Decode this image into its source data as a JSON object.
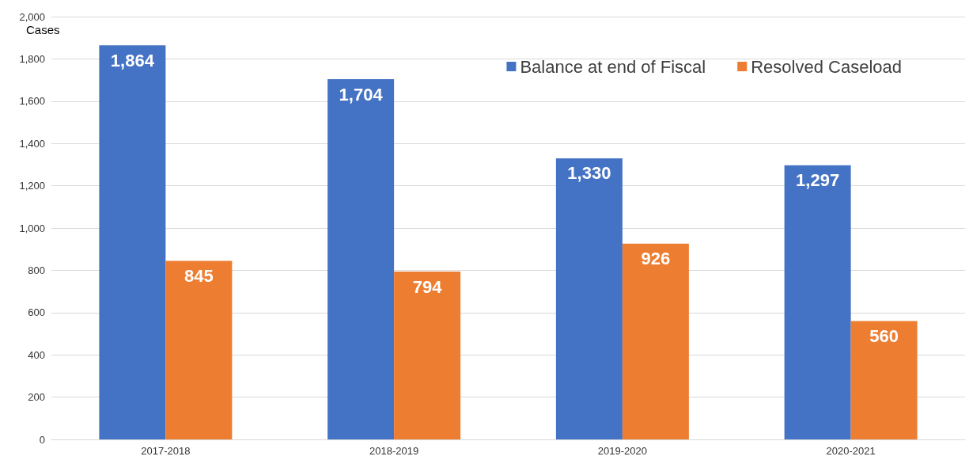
{
  "chart_data": {
    "type": "bar",
    "ylabel": "Cases",
    "categories": [
      "2017-2018",
      "2018-2019",
      "2019-2020",
      "2020-2021"
    ],
    "series": [
      {
        "name": "Balance at end of Fiscal",
        "color": "#4472c4",
        "values": [
          1864,
          1704,
          1330,
          1297
        ],
        "value_labels": [
          "1,864",
          "1,704",
          "1,330",
          "1,297"
        ]
      },
      {
        "name": "Resolved Caseload",
        "color": "#ed7d31",
        "values": [
          845,
          794,
          926,
          560
        ],
        "value_labels": [
          "845",
          "794",
          "926",
          "560"
        ]
      }
    ],
    "ylim": [
      0,
      2000
    ],
    "yticks": [
      0,
      {
        "value": 200,
        "label": "200"
      },
      {
        "value": 400,
        "label": "400"
      },
      {
        "value": 600,
        "label": "600"
      },
      {
        "value": 800,
        "label": "800"
      },
      {
        "value": 1000,
        "label": "1,000"
      },
      {
        "value": 1200,
        "label": "1,200"
      },
      {
        "value": 1400,
        "label": "1,400"
      },
      {
        "value": 1600,
        "label": "1,600"
      },
      {
        "value": 1800,
        "label": "1,800"
      },
      {
        "value": 2000,
        "label": "2,000"
      }
    ],
    "grid": "y",
    "legend": "top right"
  }
}
